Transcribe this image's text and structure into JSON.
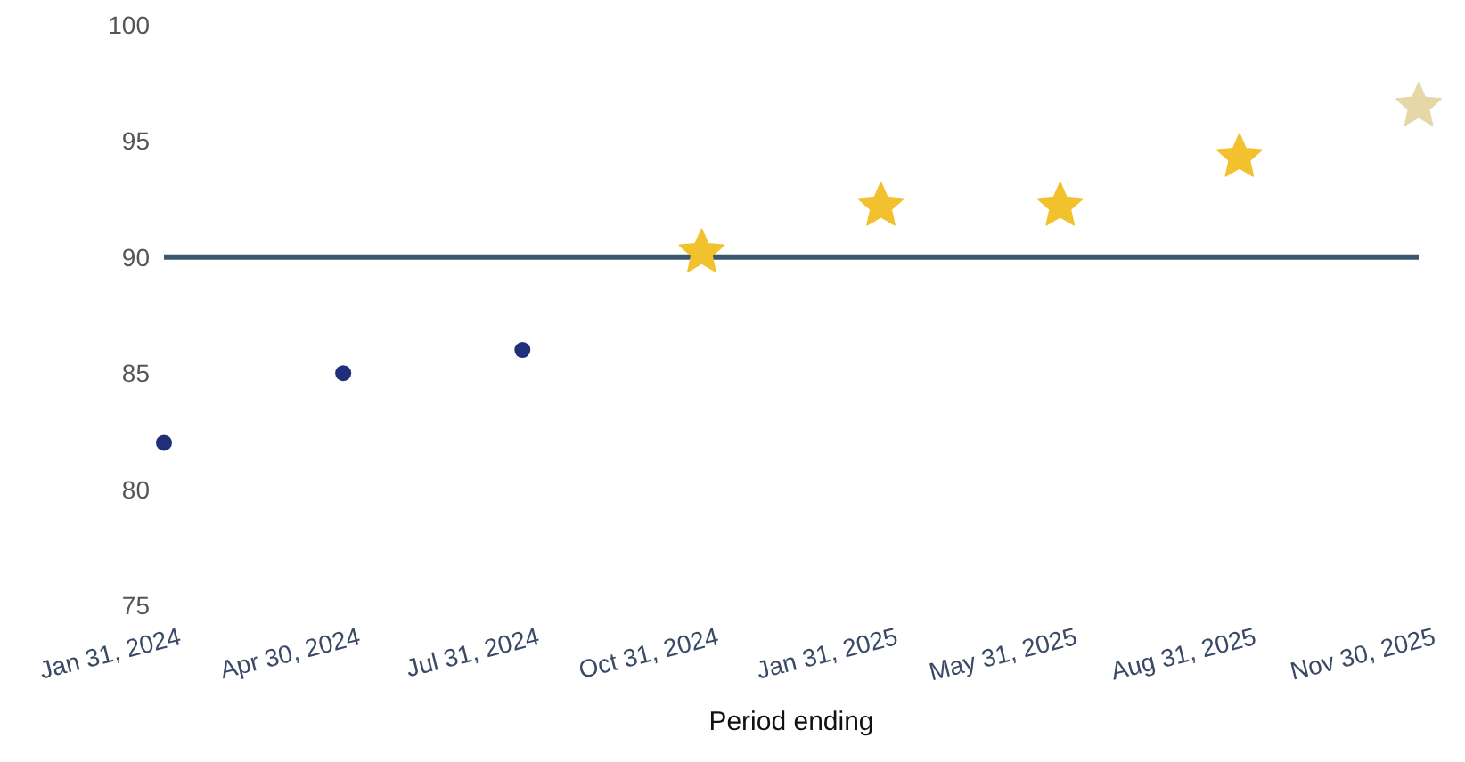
{
  "chart_data": {
    "type": "scatter",
    "xlabel": "Period ending",
    "categories": [
      "Jan 31, 2024",
      "Apr 30, 2024",
      "Jul 31, 2024",
      "Oct 31, 2024",
      "Jan 31, 2025",
      "May 31, 2025",
      "Aug 31, 2025",
      "Nov 30, 2025"
    ],
    "series": [
      {
        "color": "#1f2f7a",
        "marker": "circle",
        "values": [
          82,
          85,
          86,
          null,
          null,
          null,
          null,
          null
        ]
      },
      {
        "color": "#f2c12e",
        "marker": "star",
        "values": [
          null,
          null,
          null,
          90.2,
          92.2,
          92.2,
          94.3,
          null
        ]
      },
      {
        "color": "#e6d7a6",
        "marker": "star",
        "values": [
          null,
          null,
          null,
          null,
          null,
          null,
          null,
          96.5
        ]
      }
    ],
    "ylim": [
      75,
      100
    ],
    "yticks": [
      75,
      80,
      85,
      90,
      95,
      100
    ],
    "grid": false,
    "legend": false,
    "ref_lines": [
      {
        "axis": "y",
        "value": 90,
        "color": "#3c5870"
      }
    ]
  }
}
